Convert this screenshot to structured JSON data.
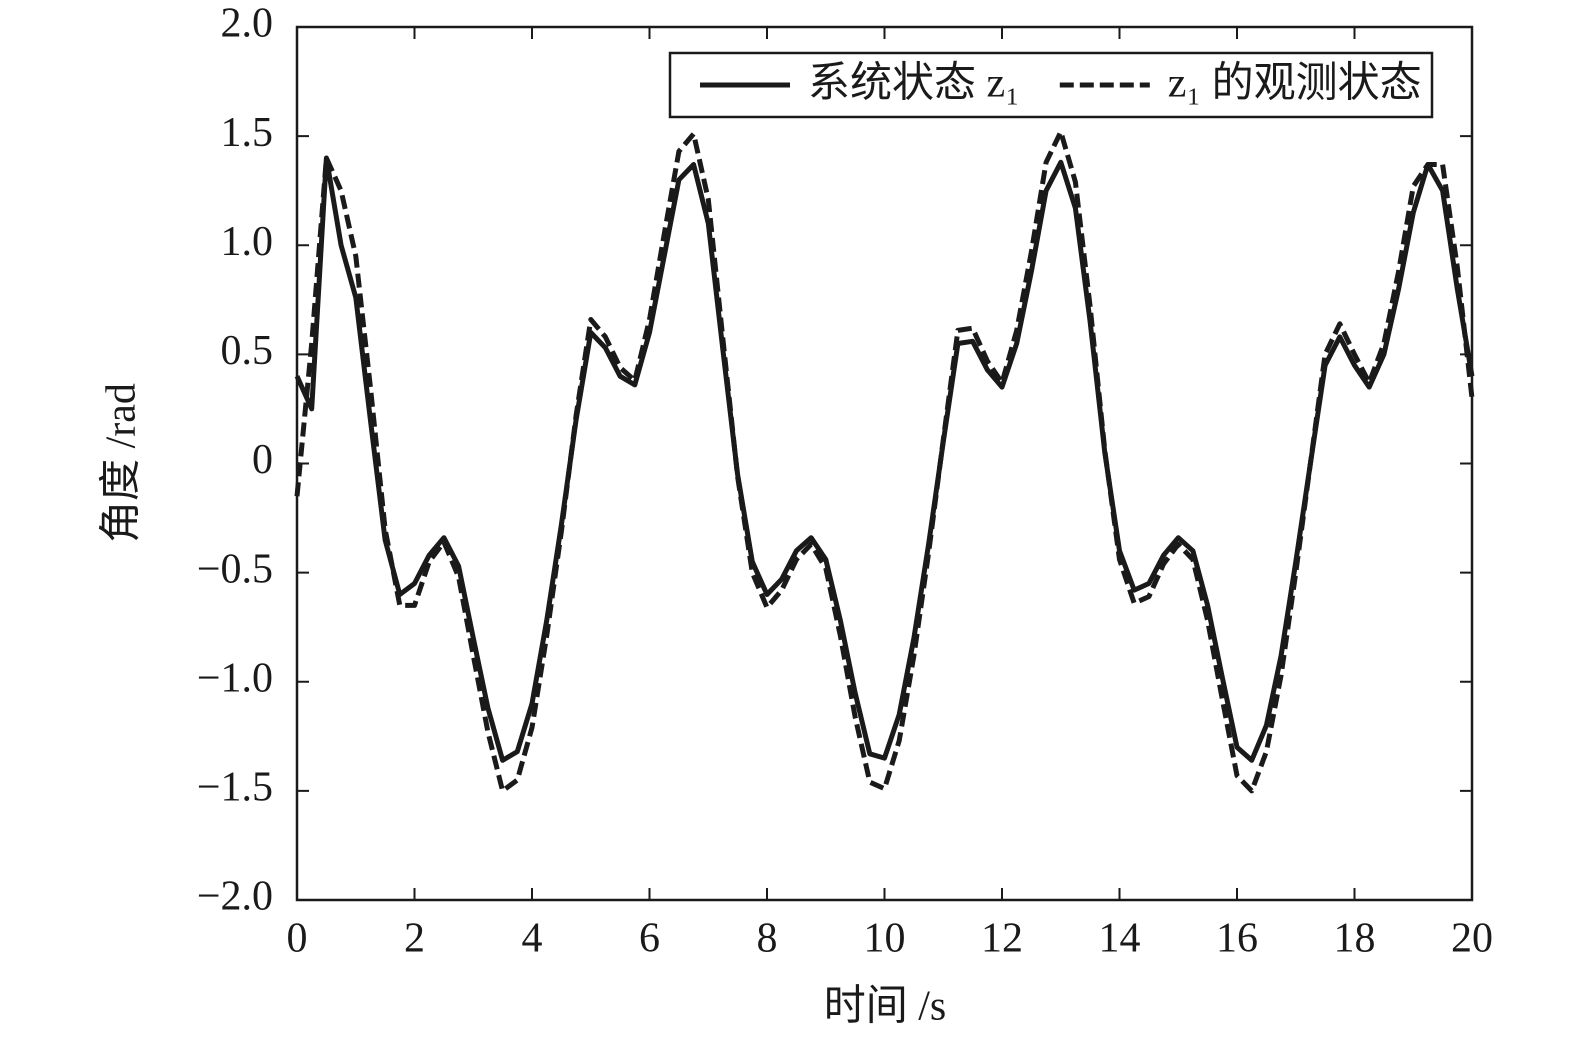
{
  "chart_data": {
    "type": "line",
    "xlabel": "时间 /s",
    "ylabel": "角度 /rad",
    "x": [
      0,
      0.25,
      0.5,
      0.75,
      1,
      1.25,
      1.5,
      1.75,
      2,
      2.25,
      2.5,
      2.75,
      3,
      3.25,
      3.5,
      3.75,
      4,
      4.25,
      4.5,
      4.75,
      5,
      5.25,
      5.5,
      5.75,
      6,
      6.25,
      6.5,
      6.75,
      7,
      7.25,
      7.5,
      7.75,
      8,
      8.25,
      8.5,
      8.75,
      9,
      9.25,
      9.5,
      9.75,
      10,
      10.25,
      10.5,
      10.75,
      11,
      11.25,
      11.5,
      11.75,
      12,
      12.25,
      12.5,
      12.75,
      13,
      13.25,
      13.5,
      13.75,
      14,
      14.25,
      14.5,
      14.75,
      15,
      15.25,
      15.5,
      15.75,
      16,
      16.25,
      16.5,
      16.75,
      17,
      17.25,
      17.5,
      17.75,
      18,
      18.25,
      18.5,
      18.75,
      19,
      19.25,
      19.5,
      19.75,
      20
    ],
    "series": [
      {
        "name": "系统状态 z₁",
        "color": "#1a1a1a",
        "line_style": "solid",
        "values": [
          0.4,
          0.25,
          1.4,
          1.0,
          0.76,
          0.2,
          -0.35,
          -0.6,
          -0.55,
          -0.42,
          -0.34,
          -0.47,
          -0.8,
          -1.12,
          -1.36,
          -1.32,
          -1.1,
          -0.72,
          -0.28,
          0.2,
          0.6,
          0.53,
          0.4,
          0.36,
          0.6,
          0.95,
          1.3,
          1.37,
          1.1,
          0.52,
          -0.05,
          -0.45,
          -0.6,
          -0.53,
          -0.4,
          -0.34,
          -0.44,
          -0.72,
          -1.05,
          -1.33,
          -1.35,
          -1.15,
          -0.8,
          -0.37,
          0.1,
          0.55,
          0.56,
          0.43,
          0.35,
          0.55,
          0.88,
          1.25,
          1.38,
          1.17,
          0.65,
          0.05,
          -0.4,
          -0.58,
          -0.55,
          -0.42,
          -0.34,
          -0.4,
          -0.65,
          -0.98,
          -1.3,
          -1.36,
          -1.2,
          -0.88,
          -0.45,
          0.0,
          0.45,
          0.58,
          0.45,
          0.35,
          0.5,
          0.8,
          1.15,
          1.37,
          1.25,
          0.8,
          0.4
        ]
      },
      {
        "name": "z₁ 的观测状态",
        "color": "#1a1a1a",
        "line_style": "dashed",
        "values": [
          -0.15,
          0.55,
          1.4,
          1.25,
          0.95,
          0.35,
          -0.3,
          -0.65,
          -0.65,
          -0.45,
          -0.36,
          -0.52,
          -0.88,
          -1.23,
          -1.5,
          -1.45,
          -1.21,
          -0.79,
          -0.31,
          0.22,
          0.66,
          0.58,
          0.44,
          0.38,
          0.66,
          1.05,
          1.43,
          1.51,
          1.21,
          0.57,
          -0.06,
          -0.5,
          -0.66,
          -0.58,
          -0.44,
          -0.37,
          -0.48,
          -0.79,
          -1.16,
          -1.46,
          -1.49,
          -1.27,
          -0.88,
          -0.41,
          0.11,
          0.61,
          0.62,
          0.47,
          0.37,
          0.61,
          0.97,
          1.38,
          1.52,
          1.29,
          0.72,
          0.06,
          -0.44,
          -0.64,
          -0.61,
          -0.46,
          -0.37,
          -0.44,
          -0.72,
          -1.08,
          -1.43,
          -1.5,
          -1.32,
          -0.97,
          -0.5,
          0.0,
          0.5,
          0.64,
          0.5,
          0.37,
          0.55,
          0.88,
          1.27,
          1.37,
          1.37,
          0.9,
          0.3
        ]
      }
    ],
    "xlim": [
      0,
      20
    ],
    "xticks": [
      0,
      2,
      4,
      6,
      8,
      10,
      12,
      14,
      16,
      18,
      20
    ],
    "ylim": [
      -2,
      2
    ],
    "yticks": [
      {
        "value": -2,
        "label": "−2.0"
      },
      {
        "value": -1.5,
        "label": "−1.5"
      },
      {
        "value": -1,
        "label": "−1.0"
      },
      {
        "value": -0.5,
        "label": "−0.5"
      },
      0,
      0.5,
      {
        "value": 1,
        "label": "1.0"
      },
      1.5,
      {
        "value": 2,
        "label": "2.0"
      }
    ],
    "grid": false,
    "legend": "upper right"
  }
}
